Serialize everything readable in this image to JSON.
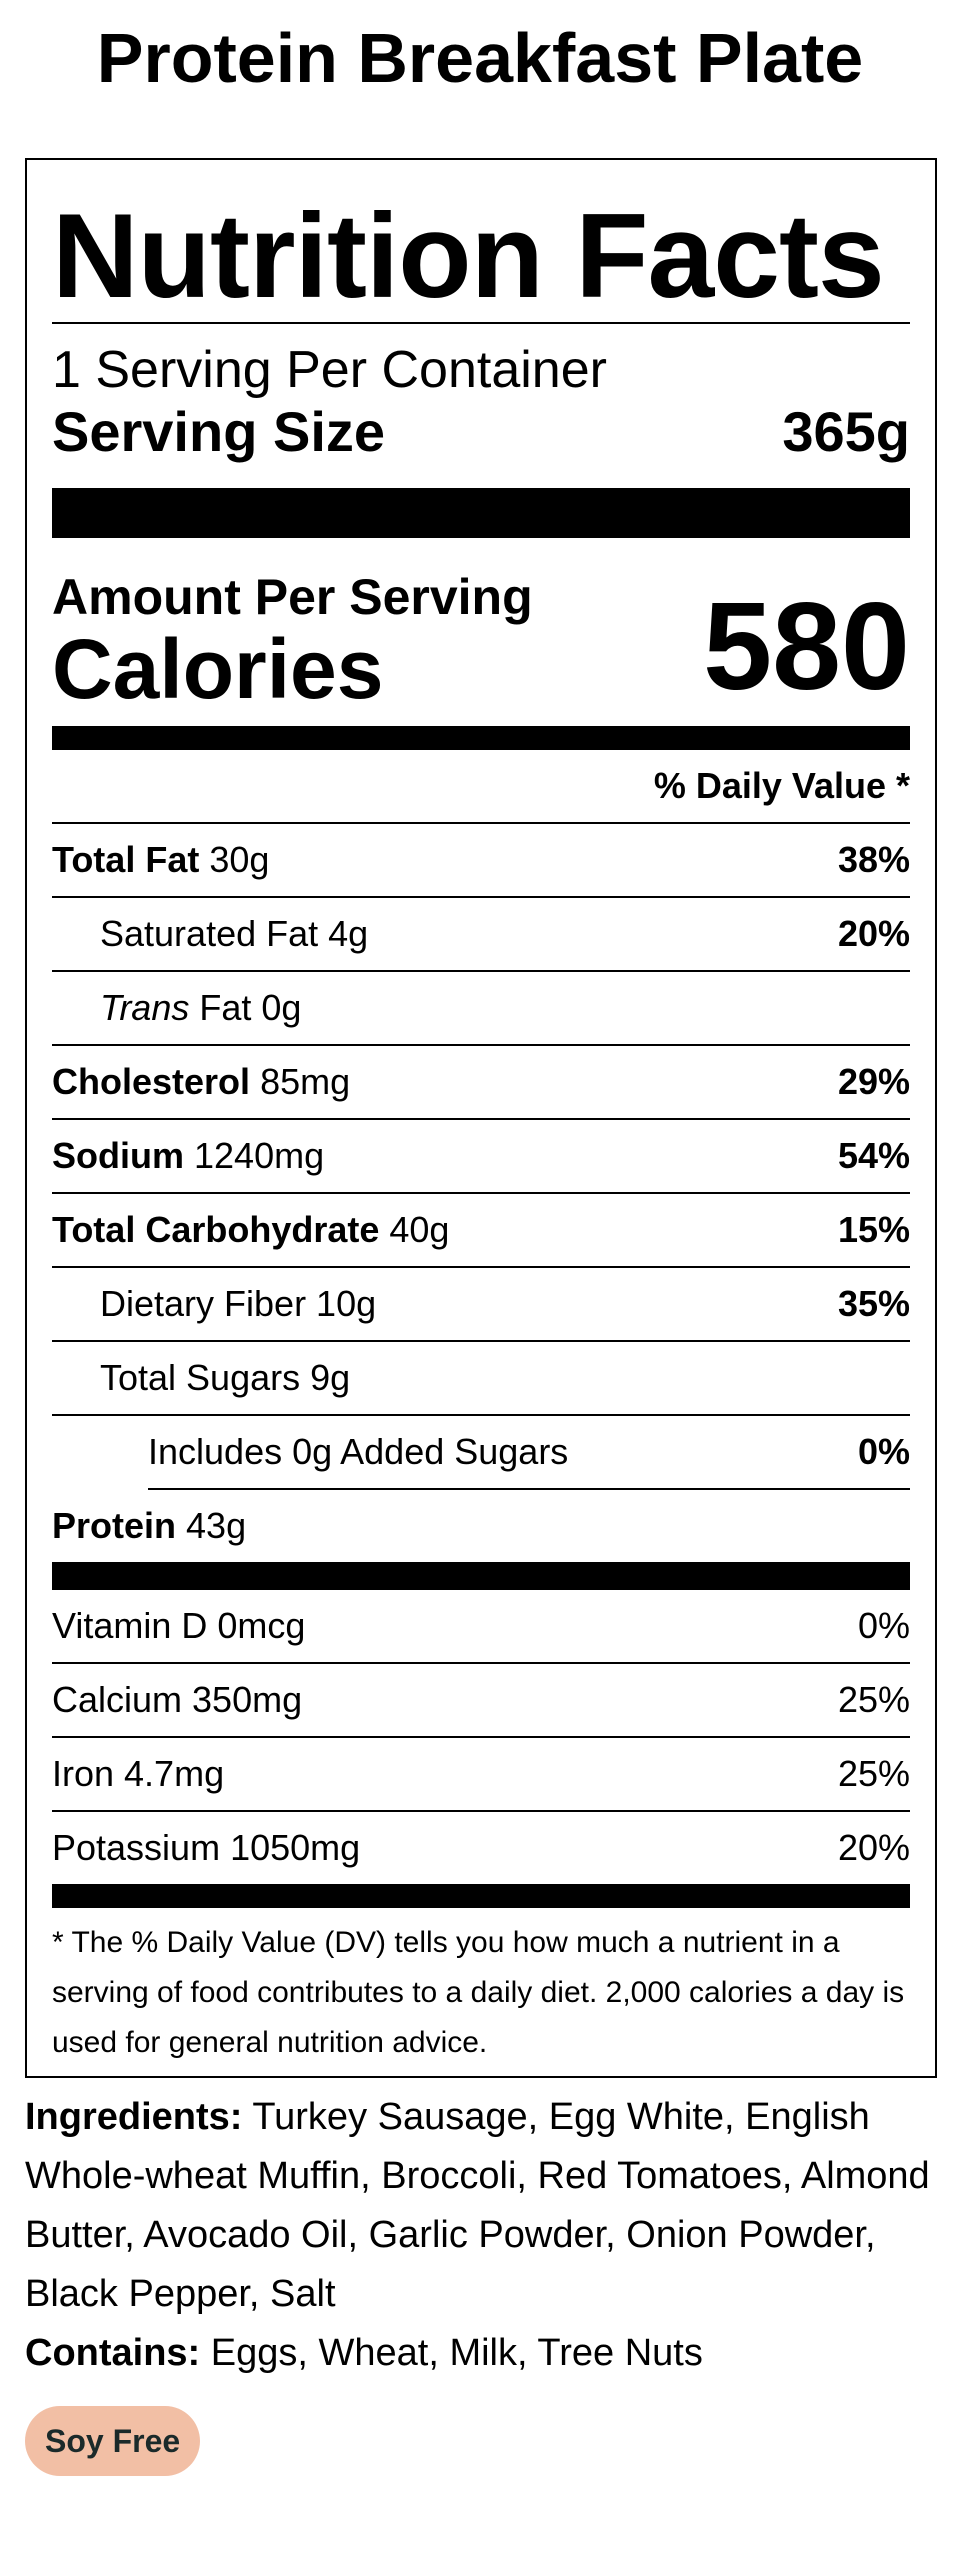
{
  "product": {
    "title": "Protein Breakfast Plate"
  },
  "label": {
    "heading": "Nutrition Facts",
    "servings_per_container": "1 Serving Per Container",
    "serving_size_label": "Serving Size",
    "serving_size_value": "365g",
    "amount_per_serving": "Amount Per Serving",
    "calories_label": "Calories",
    "calories_value": "580",
    "daily_value_header": "% Daily Value *",
    "nutrients": {
      "total_fat": {
        "name": "Total Fat",
        "amount": "30g",
        "dv": "38%"
      },
      "saturated_fat": {
        "name": "Saturated Fat 4g",
        "dv": "20%"
      },
      "trans_fat": {
        "name_italic": "Trans",
        "name_rest": "Fat 0g"
      },
      "cholesterol": {
        "name": "Cholesterol",
        "amount": "85mg",
        "dv": "29%"
      },
      "sodium": {
        "name": "Sodium",
        "amount": "1240mg",
        "dv": "54%"
      },
      "total_carbohydrate": {
        "name": "Total Carbohydrate",
        "amount": "40g",
        "dv": "15%"
      },
      "dietary_fiber": {
        "name": "Dietary Fiber 10g",
        "dv": "35%"
      },
      "total_sugars": {
        "name": "Total Sugars 9g"
      },
      "added_sugars": {
        "name": "Includes 0g Added Sugars",
        "dv": "0%"
      },
      "protein": {
        "name": "Protein",
        "amount": "43g"
      }
    },
    "vitamins": [
      {
        "name": "Vitamin D 0mcg",
        "dv": "0%"
      },
      {
        "name": "Calcium 350mg",
        "dv": "25%"
      },
      {
        "name": "Iron 4.7mg",
        "dv": "25%"
      },
      {
        "name": "Potassium 1050mg",
        "dv": "20%"
      }
    ],
    "footnote": "* The % Daily Value (DV) tells you how much a nutrient in a serving of food contributes to a daily diet. 2,000 calories a day is used for general nutrition advice."
  },
  "ingredients": {
    "label": "Ingredients:",
    "text": "Turkey Sausage, Egg White, English Whole-wheat Muffin, Broccoli, Red Tomatoes, Almond Butter, Avocado Oil, Garlic Powder, Onion Powder, Black Pepper, Salt",
    "contains_label": "Contains:",
    "contains_text": "Eggs, Wheat, Milk, Tree Nuts"
  },
  "badge": {
    "label": "Soy Free",
    "background_color": "#f2bfa5"
  }
}
